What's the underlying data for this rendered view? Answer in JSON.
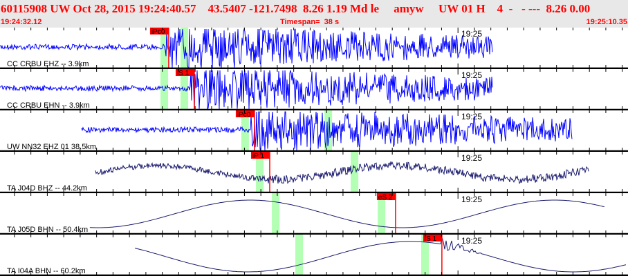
{
  "header": {
    "event_id": "60115908",
    "network": "UW",
    "origin": "Oct 28, 2015 19:24:40.57",
    "lat": "43.5407",
    "lon": "-121.7498",
    "depth": "8.26",
    "magnitude": "1.19",
    "mag_type": "Md",
    "flag": "le",
    "analyst": "amyw",
    "source": "UW 01 H",
    "count": "4",
    "dashes": "-   - ---",
    "tail": "8.26 0.00",
    "start_time": "19:24:32.12",
    "timespan_label": "Timespan=  38 s",
    "end_time": "19:25:10.35"
  },
  "time_axis": {
    "start": "19:24:32.12",
    "end": "19:25:10.35",
    "minute_label": "19:25",
    "tick_interval_s": 1
  },
  "colors": {
    "pick": "#ff0000",
    "window": "#b3ffb3",
    "trace_hf": "#0000ff",
    "trace_bb": "#1a1a6e",
    "header_text": "#ff0000",
    "header_bg": "#e8e8e8"
  },
  "panels": [
    {
      "label": "CC CRBU EHZ -- 3.9km",
      "trace_start": "19:24:32.12",
      "trace_end": "19:25:02.10",
      "style": "hf",
      "pick": {
        "label": "iPc0",
        "time": "19:24:42.39"
      },
      "windows": [
        "19:24:41.89",
        "19:24:43.11"
      ]
    },
    {
      "label": "CC CRBU EHN -- 3.9km",
      "trace_start": "19:24:32.12",
      "trace_end": "19:25:02.10",
      "style": "hf",
      "pick": {
        "label": "iS 1",
        "time": "19:24:43.95"
      },
      "windows": [
        "19:24:41.89",
        "19:24:43.11"
      ]
    },
    {
      "label": "UW NN32 EHZ 01 38.5km",
      "trace_start": "19:24:37.09",
      "trace_end": "19:25:06.98",
      "style": "hf",
      "pick": {
        "label": "iPc0",
        "time": "19:24:47.61"
      },
      "windows": [
        "19:24:46.81",
        "19:24:51.87"
      ]
    },
    {
      "label": "TA J04D BHZ -- 44.2km",
      "trace_start": "19:24:37.93",
      "trace_end": "19:25:07.99",
      "style": "bbnoisy",
      "pick": {
        "label": "iP 1",
        "time": "19:24:48.54"
      },
      "windows": [
        "19:24:47.70",
        "19:24:53.47"
      ]
    },
    {
      "label": "TA J05D BHN -- 50.4km",
      "trace_start": "19:24:37.59",
      "trace_end": "19:25:08.96",
      "style": "bb",
      "pick": {
        "label": "eS 2",
        "time": "19:24:56.20"
      },
      "windows": [
        "19:24:48.67",
        "19:24:55.11"
      ]
    },
    {
      "label": "TA I04A BHN -- 60.2km",
      "trace_start": "19:24:40.33",
      "trace_end": "19:25:10.23",
      "style": "bbs",
      "pick": {
        "label": "iS 1",
        "time": "19:24:59.02"
      },
      "windows": [
        "19:24:50.10",
        "19:24:57.76"
      ]
    }
  ]
}
